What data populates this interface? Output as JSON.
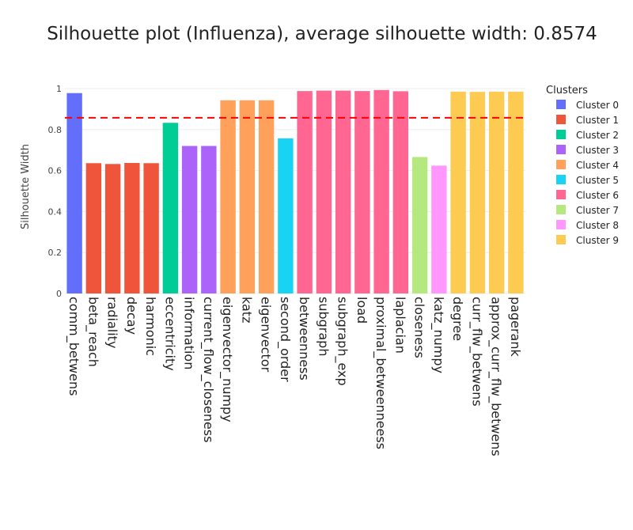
{
  "chart_data": {
    "type": "bar",
    "title": "Silhouette plot (Influenza), average silhouette width: 0.8574",
    "xlabel": "",
    "ylabel": "Silhouette Width",
    "ylim": [
      0,
      1
    ],
    "yticks": [
      0,
      0.2,
      0.4,
      0.6,
      0.8,
      1
    ],
    "ytick_labels": [
      "0",
      "0.2",
      "0.4",
      "0.6",
      "0.8",
      "1"
    ],
    "average_line": {
      "value": 0.8574,
      "color": "#ff0000",
      "style": "dashed"
    },
    "legend_title": "Clusters",
    "legend_position": "right",
    "clusters": [
      {
        "name": "Cluster 0",
        "color": "#636efa"
      },
      {
        "name": "Cluster 1",
        "color": "#ef553b"
      },
      {
        "name": "Cluster 2",
        "color": "#00cc96"
      },
      {
        "name": "Cluster 3",
        "color": "#ab63fa"
      },
      {
        "name": "Cluster 4",
        "color": "#ffa15a"
      },
      {
        "name": "Cluster 5",
        "color": "#19d3f3"
      },
      {
        "name": "Cluster 6",
        "color": "#ff6692"
      },
      {
        "name": "Cluster 7",
        "color": "#b6e880"
      },
      {
        "name": "Cluster 8",
        "color": "#ff97ff"
      },
      {
        "name": "Cluster 9",
        "color": "#fecb52"
      }
    ],
    "categories": [
      "comm_betwens",
      "beta_reach",
      "radiality",
      "decay",
      "harmonic",
      "eccentricity",
      "information",
      "current_flow_closeness",
      "eigenvector_numpy",
      "katz",
      "eigenvector",
      "second_order",
      "betweenness",
      "subgraph",
      "subgraph_exp",
      "load",
      "proximal_betweenneess",
      "laplacian",
      "closeness",
      "katz_numpy",
      "degree",
      "curr_flw_betwens",
      "approx_curr_flw_betwens",
      "pagerank"
    ],
    "values": [
      0.978,
      0.636,
      0.632,
      0.637,
      0.636,
      0.833,
      0.72,
      0.72,
      0.943,
      0.943,
      0.943,
      0.757,
      0.988,
      0.99,
      0.99,
      0.988,
      0.993,
      0.987,
      0.666,
      0.624,
      0.985,
      0.984,
      0.985,
      0.985
    ],
    "cluster_index": [
      0,
      1,
      1,
      1,
      1,
      2,
      3,
      3,
      4,
      4,
      4,
      5,
      6,
      6,
      6,
      6,
      6,
      6,
      7,
      8,
      9,
      9,
      9,
      9
    ]
  }
}
